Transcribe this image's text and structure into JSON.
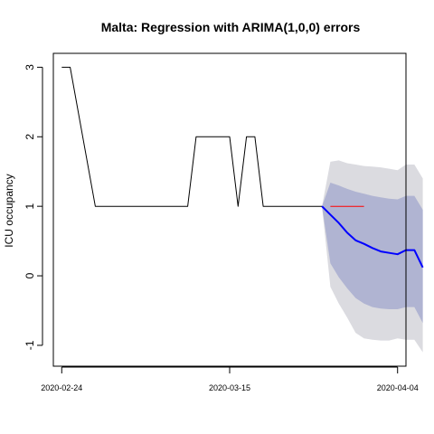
{
  "chart_data": {
    "type": "line",
    "title": "Malta: Regression with ARIMA(1,0,0) errors",
    "xlabel": "",
    "ylabel": "ICU occupancy",
    "x_tick_labels": [
      "2020-02-24",
      "2020-03-15",
      "2020-04-04"
    ],
    "x_tick_dates": [
      "2020-02-24",
      "2020-03-15",
      "2020-04-04"
    ],
    "y_ticks": [
      -1,
      0,
      1,
      2,
      3
    ],
    "xlim": [
      "2020-02-23",
      "2020-04-05"
    ],
    "ylim": [
      -1.3,
      3.2
    ],
    "grid": false,
    "series": [
      {
        "role": "observed",
        "color": "#000000",
        "points": [
          [
            "2020-02-24",
            3
          ],
          [
            "2020-02-25",
            3
          ],
          [
            "2020-02-28",
            1
          ],
          [
            "2020-03-10",
            1
          ],
          [
            "2020-03-11",
            2
          ],
          [
            "2020-03-15",
            2
          ],
          [
            "2020-03-16",
            1
          ],
          [
            "2020-03-17",
            2
          ],
          [
            "2020-03-18",
            2
          ],
          [
            "2020-03-19",
            1
          ],
          [
            "2020-03-26",
            1
          ]
        ]
      },
      {
        "role": "forecast",
        "color": "#0000ff",
        "points": [
          [
            "2020-03-26",
            1
          ],
          [
            "2020-03-27",
            0.88
          ],
          [
            "2020-03-28",
            0.76
          ],
          [
            "2020-03-29",
            0.62
          ],
          [
            "2020-03-30",
            0.51
          ],
          [
            "2020-03-31",
            0.46
          ],
          [
            "2020-04-01",
            0.4
          ],
          [
            "2020-04-02",
            0.35
          ],
          [
            "2020-04-03",
            0.33
          ],
          [
            "2020-04-04",
            0.31
          ],
          [
            "2020-04-05",
            0.37
          ],
          [
            "2020-04-06",
            0.37
          ],
          [
            "2020-04-07",
            0.12
          ]
        ]
      },
      {
        "role": "actual",
        "color": "#ff0000",
        "points": [
          [
            "2020-03-27",
            1
          ],
          [
            "2020-03-31",
            1
          ]
        ]
      }
    ],
    "intervals": [
      {
        "level": "95",
        "color": "#dbdbe0",
        "upper": [
          [
            "2020-03-26",
            1
          ],
          [
            "2020-03-27",
            1.64
          ],
          [
            "2020-03-28",
            1.66
          ],
          [
            "2020-03-29",
            1.62
          ],
          [
            "2020-03-30",
            1.6
          ],
          [
            "2020-03-31",
            1.58
          ],
          [
            "2020-04-01",
            1.57
          ],
          [
            "2020-04-02",
            1.56
          ],
          [
            "2020-04-03",
            1.54
          ],
          [
            "2020-04-04",
            1.52
          ],
          [
            "2020-04-05",
            1.6
          ],
          [
            "2020-04-06",
            1.6
          ],
          [
            "2020-04-07",
            1.4
          ]
        ],
        "lower": [
          [
            "2020-03-26",
            1
          ],
          [
            "2020-03-27",
            -0.16
          ],
          [
            "2020-03-28",
            -0.4
          ],
          [
            "2020-03-29",
            -0.6
          ],
          [
            "2020-03-30",
            -0.82
          ],
          [
            "2020-03-31",
            -0.9
          ],
          [
            "2020-04-01",
            -0.92
          ],
          [
            "2020-04-02",
            -0.93
          ],
          [
            "2020-04-03",
            -0.93
          ],
          [
            "2020-04-04",
            -0.9
          ],
          [
            "2020-04-05",
            -0.92
          ],
          [
            "2020-04-06",
            -0.92
          ],
          [
            "2020-04-07",
            -1.1
          ]
        ]
      },
      {
        "level": "80",
        "color": "#b0b4d2",
        "upper": [
          [
            "2020-03-26",
            1
          ],
          [
            "2020-03-27",
            1.34
          ],
          [
            "2020-03-28",
            1.3
          ],
          [
            "2020-03-29",
            1.25
          ],
          [
            "2020-03-30",
            1.21
          ],
          [
            "2020-03-31",
            1.18
          ],
          [
            "2020-04-01",
            1.15
          ],
          [
            "2020-04-02",
            1.13
          ],
          [
            "2020-04-03",
            1.11
          ],
          [
            "2020-04-04",
            1.1
          ],
          [
            "2020-04-05",
            1.15
          ],
          [
            "2020-04-06",
            1.15
          ],
          [
            "2020-04-07",
            0.95
          ]
        ],
        "lower": [
          [
            "2020-03-26",
            1
          ],
          [
            "2020-03-27",
            0.18
          ],
          [
            "2020-03-28",
            -0.02
          ],
          [
            "2020-03-29",
            -0.18
          ],
          [
            "2020-03-30",
            -0.32
          ],
          [
            "2020-03-31",
            -0.4
          ],
          [
            "2020-04-01",
            -0.45
          ],
          [
            "2020-04-02",
            -0.47
          ],
          [
            "2020-04-03",
            -0.48
          ],
          [
            "2020-04-04",
            -0.48
          ],
          [
            "2020-04-05",
            -0.45
          ],
          [
            "2020-04-06",
            -0.45
          ],
          [
            "2020-04-07",
            -0.68
          ]
        ]
      }
    ]
  }
}
